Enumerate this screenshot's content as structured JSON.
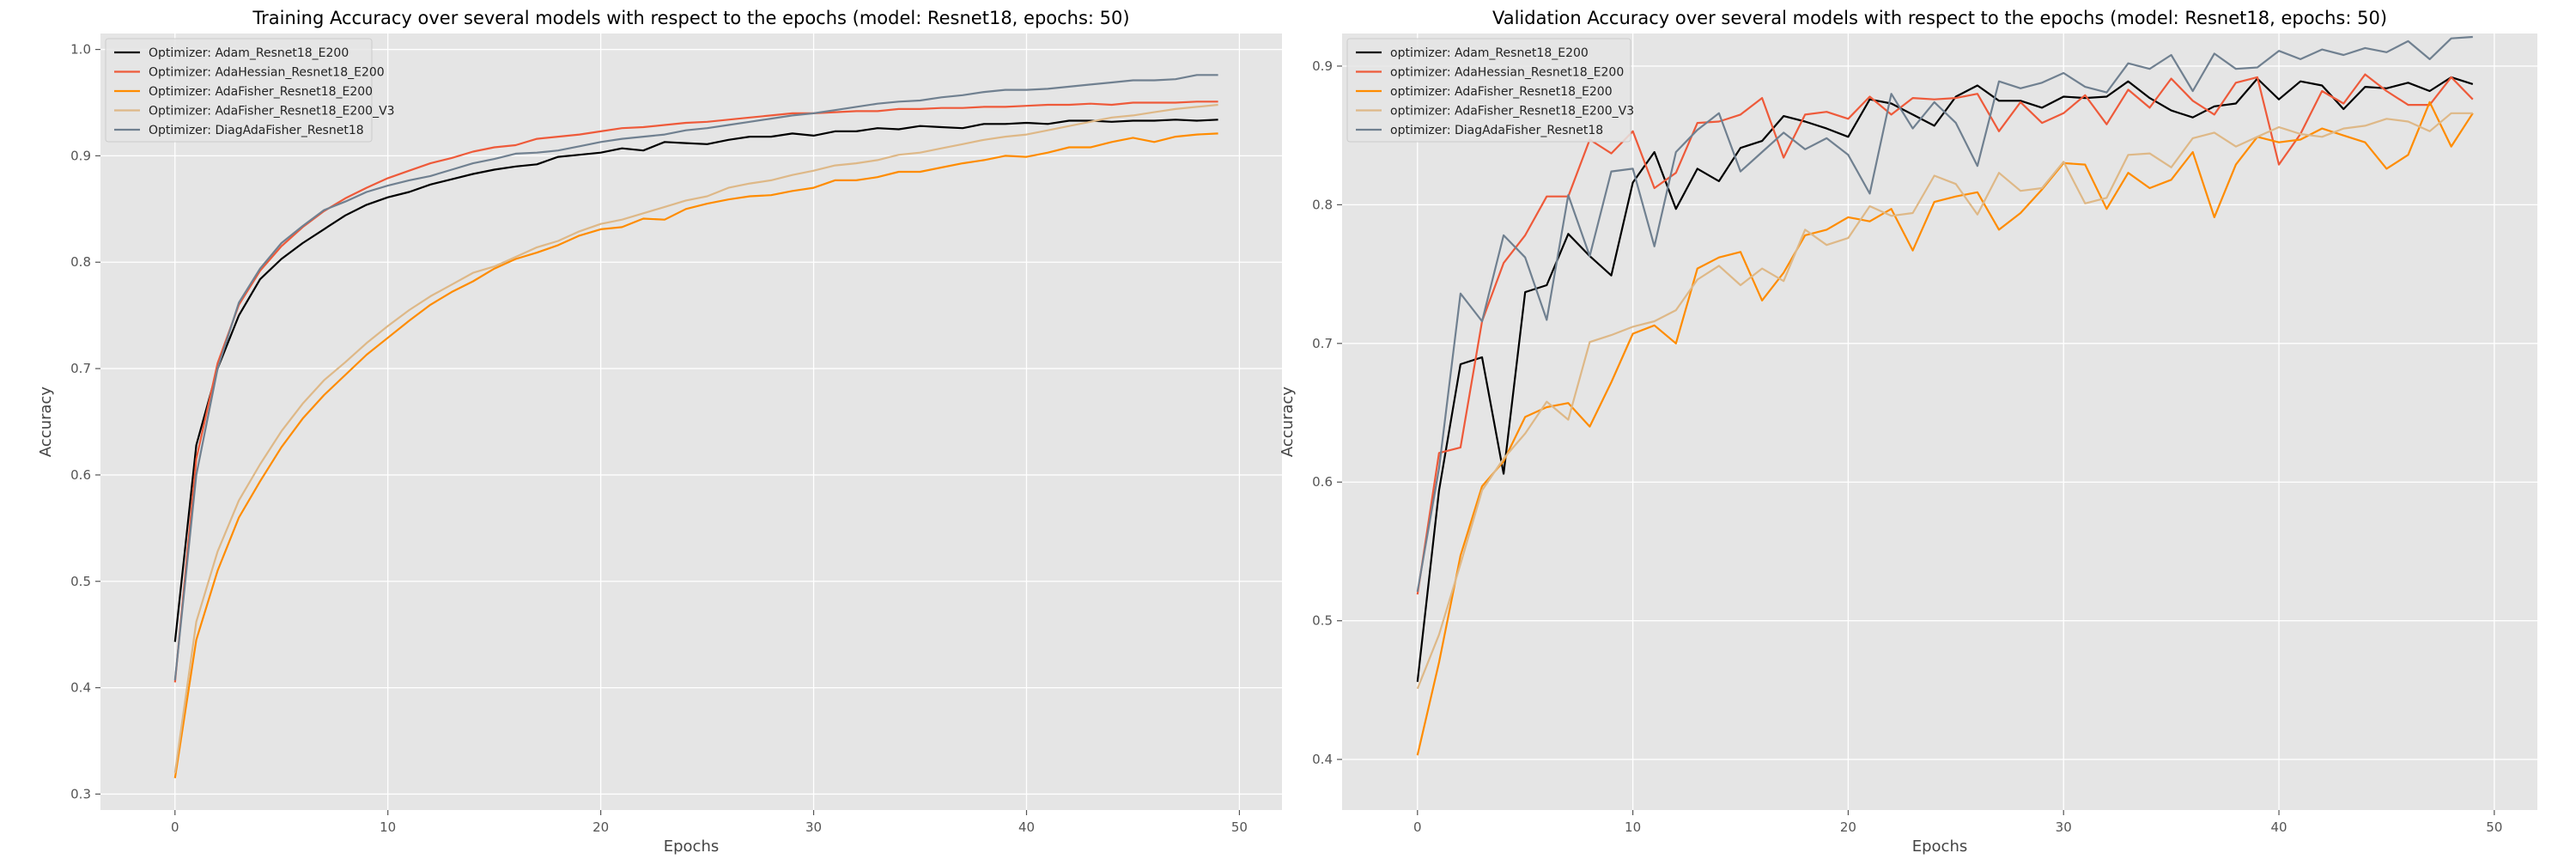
{
  "chart_data": [
    {
      "type": "line",
      "title": "Training Accuracy over several models with respect to the epochs (model: Resnet18, epochs: 50)",
      "xlabel": "Epochs",
      "ylabel": "Accuracy",
      "xlim": [
        -3.5,
        52
      ],
      "ylim": [
        0.285,
        1.015
      ],
      "xticks": [
        0,
        10,
        20,
        30,
        40,
        50
      ],
      "yticks": [
        0.3,
        0.4,
        0.5,
        0.6,
        0.7,
        0.8,
        0.9,
        1.0
      ],
      "xtick_labels": [
        "0",
        "10",
        "20",
        "30",
        "40",
        "50"
      ],
      "ytick_labels": [
        "0.3",
        "0.4",
        "0.5",
        "0.6",
        "0.7",
        "0.8",
        "0.9",
        "1.0"
      ],
      "grid": true,
      "legend_position": "top-left",
      "series": [
        {
          "name": "Optimizer: Adam_Resnet18_E200",
          "color": "#000000",
          "values": [
            0.443,
            0.628,
            0.7,
            0.75,
            0.784,
            0.803,
            0.818,
            0.831,
            0.844,
            0.854,
            0.861,
            0.866,
            0.873,
            0.878,
            0.883,
            0.887,
            0.89,
            0.892,
            0.899,
            0.901,
            0.903,
            0.907,
            0.905,
            0.913,
            0.912,
            0.911,
            0.915,
            0.918,
            0.918,
            0.921,
            0.919,
            0.923,
            0.923,
            0.926,
            0.925,
            0.928,
            0.927,
            0.926,
            0.93,
            0.93,
            0.931,
            0.93,
            0.933,
            0.933,
            0.932,
            0.933,
            0.933,
            0.934,
            0.933,
            0.934
          ]
        },
        {
          "name": "Optimizer: AdaHessian_Resnet18_E200",
          "color": "#ee5a3a",
          "values": [
            0.405,
            0.615,
            0.705,
            0.76,
            0.792,
            0.815,
            0.833,
            0.848,
            0.86,
            0.87,
            0.879,
            0.886,
            0.893,
            0.898,
            0.904,
            0.908,
            0.91,
            0.916,
            0.918,
            0.92,
            0.923,
            0.926,
            0.927,
            0.929,
            0.931,
            0.932,
            0.934,
            0.936,
            0.938,
            0.94,
            0.94,
            0.941,
            0.942,
            0.942,
            0.944,
            0.944,
            0.945,
            0.945,
            0.946,
            0.946,
            0.947,
            0.948,
            0.948,
            0.949,
            0.948,
            0.95,
            0.95,
            0.95,
            0.951,
            0.951
          ]
        },
        {
          "name": "Optimizer: AdaFisher_Resnet18_E200",
          "color": "#ff8c00",
          "values": [
            0.315,
            0.445,
            0.51,
            0.56,
            0.594,
            0.626,
            0.653,
            0.675,
            0.694,
            0.713,
            0.729,
            0.745,
            0.76,
            0.772,
            0.782,
            0.794,
            0.803,
            0.809,
            0.816,
            0.825,
            0.831,
            0.833,
            0.841,
            0.84,
            0.85,
            0.855,
            0.859,
            0.862,
            0.863,
            0.867,
            0.87,
            0.877,
            0.877,
            0.88,
            0.885,
            0.885,
            0.889,
            0.893,
            0.896,
            0.9,
            0.899,
            0.903,
            0.908,
            0.908,
            0.913,
            0.917,
            0.913,
            0.918,
            0.92,
            0.921
          ]
        },
        {
          "name": "Optimizer: AdaFisher_Resnet18_E200_V3",
          "color": "#deb887",
          "values": [
            0.32,
            0.462,
            0.528,
            0.576,
            0.61,
            0.641,
            0.667,
            0.689,
            0.706,
            0.724,
            0.74,
            0.755,
            0.768,
            0.779,
            0.79,
            0.796,
            0.805,
            0.814,
            0.82,
            0.829,
            0.836,
            0.84,
            0.846,
            0.852,
            0.858,
            0.862,
            0.87,
            0.874,
            0.877,
            0.882,
            0.886,
            0.891,
            0.893,
            0.896,
            0.901,
            0.903,
            0.907,
            0.911,
            0.915,
            0.918,
            0.92,
            0.924,
            0.928,
            0.932,
            0.936,
            0.938,
            0.941,
            0.944,
            0.946,
            0.948
          ]
        },
        {
          "name": "Optimizer: DiagAdaFisher_Resnet18",
          "color": "#708090",
          "values": [
            0.407,
            0.6,
            0.7,
            0.762,
            0.794,
            0.818,
            0.834,
            0.849,
            0.857,
            0.866,
            0.872,
            0.877,
            0.881,
            0.887,
            0.893,
            0.897,
            0.902,
            0.903,
            0.905,
            0.909,
            0.913,
            0.916,
            0.918,
            0.92,
            0.924,
            0.926,
            0.929,
            0.932,
            0.935,
            0.938,
            0.94,
            0.943,
            0.946,
            0.949,
            0.951,
            0.952,
            0.955,
            0.957,
            0.96,
            0.962,
            0.962,
            0.963,
            0.965,
            0.967,
            0.969,
            0.971,
            0.971,
            0.972,
            0.976,
            0.976
          ]
        }
      ]
    },
    {
      "type": "line",
      "title": "Validation Accuracy over several models with respect to the epochs (model: Resnet18, epochs: 50)",
      "xlabel": "Epochs",
      "ylabel": "Accuracy",
      "xlim": [
        -3.5,
        52
      ],
      "ylim": [
        0.3635,
        0.9235
      ],
      "xticks": [
        0,
        10,
        20,
        30,
        40,
        50
      ],
      "yticks": [
        0.4,
        0.5,
        0.6,
        0.7,
        0.8,
        0.9
      ],
      "xtick_labels": [
        "0",
        "10",
        "20",
        "30",
        "40",
        "50"
      ],
      "ytick_labels": [
        "0.4",
        "0.5",
        "0.6",
        "0.7",
        "0.8",
        "0.9"
      ],
      "grid": true,
      "legend_position": "top-left",
      "series": [
        {
          "name": "optimizer: Adam_Resnet18_E200",
          "color": "#000000",
          "values": [
            0.456,
            0.594,
            0.685,
            0.69,
            0.606,
            0.737,
            0.742,
            0.779,
            0.763,
            0.749,
            0.816,
            0.838,
            0.797,
            0.826,
            0.817,
            0.841,
            0.846,
            0.864,
            0.86,
            0.855,
            0.849,
            0.876,
            0.873,
            0.865,
            0.857,
            0.878,
            0.886,
            0.875,
            0.875,
            0.87,
            0.878,
            0.877,
            0.878,
            0.889,
            0.877,
            0.868,
            0.863,
            0.871,
            0.873,
            0.891,
            0.876,
            0.889,
            0.886,
            0.869,
            0.885,
            0.884,
            0.888,
            0.882,
            0.892,
            0.887
          ]
        },
        {
          "name": "optimizer: AdaHessian_Resnet18_E200",
          "color": "#ee5a3a",
          "values": [
            0.519,
            0.621,
            0.625,
            0.716,
            0.758,
            0.778,
            0.806,
            0.806,
            0.847,
            0.837,
            0.853,
            0.812,
            0.823,
            0.859,
            0.86,
            0.865,
            0.877,
            0.834,
            0.865,
            0.867,
            0.862,
            0.878,
            0.865,
            0.877,
            0.876,
            0.877,
            0.88,
            0.853,
            0.874,
            0.859,
            0.866,
            0.879,
            0.858,
            0.883,
            0.87,
            0.891,
            0.875,
            0.865,
            0.888,
            0.892,
            0.829,
            0.851,
            0.882,
            0.873,
            0.894,
            0.882,
            0.872,
            0.872,
            0.892,
            0.876
          ]
        },
        {
          "name": "optimizer: AdaFisher_Resnet18_E200",
          "color": "#ff8c00",
          "values": [
            0.403,
            0.47,
            0.547,
            0.597,
            0.615,
            0.647,
            0.654,
            0.657,
            0.64,
            0.672,
            0.707,
            0.713,
            0.7,
            0.754,
            0.762,
            0.766,
            0.731,
            0.751,
            0.778,
            0.782,
            0.791,
            0.788,
            0.797,
            0.767,
            0.802,
            0.806,
            0.809,
            0.782,
            0.794,
            0.811,
            0.83,
            0.829,
            0.797,
            0.823,
            0.812,
            0.818,
            0.838,
            0.791,
            0.829,
            0.849,
            0.845,
            0.847,
            0.855,
            0.85,
            0.845,
            0.826,
            0.836,
            0.874,
            0.842,
            0.866
          ]
        },
        {
          "name": "optimizer: AdaFisher_Resnet18_E200_V3",
          "color": "#deb887",
          "values": [
            0.451,
            0.49,
            0.541,
            0.594,
            0.617,
            0.635,
            0.658,
            0.645,
            0.701,
            0.706,
            0.712,
            0.716,
            0.724,
            0.746,
            0.756,
            0.742,
            0.754,
            0.745,
            0.782,
            0.771,
            0.776,
            0.799,
            0.792,
            0.794,
            0.821,
            0.815,
            0.793,
            0.823,
            0.81,
            0.812,
            0.831,
            0.801,
            0.805,
            0.836,
            0.837,
            0.827,
            0.848,
            0.852,
            0.842,
            0.849,
            0.856,
            0.851,
            0.849,
            0.855,
            0.857,
            0.862,
            0.86,
            0.853,
            0.866,
            0.866
          ]
        },
        {
          "name": "optimizer: DiagAdaFisher_Resnet18",
          "color": "#708090",
          "values": [
            0.521,
            0.61,
            0.736,
            0.716,
            0.778,
            0.762,
            0.717,
            0.807,
            0.763,
            0.824,
            0.826,
            0.77,
            0.838,
            0.854,
            0.866,
            0.824,
            0.838,
            0.852,
            0.84,
            0.848,
            0.836,
            0.808,
            0.88,
            0.855,
            0.874,
            0.859,
            0.828,
            0.889,
            0.884,
            0.888,
            0.895,
            0.885,
            0.881,
            0.902,
            0.898,
            0.908,
            0.882,
            0.909,
            0.898,
            0.899,
            0.911,
            0.905,
            0.912,
            0.908,
            0.913,
            0.91,
            0.918,
            0.905,
            0.92,
            0.921
          ]
        }
      ]
    }
  ]
}
